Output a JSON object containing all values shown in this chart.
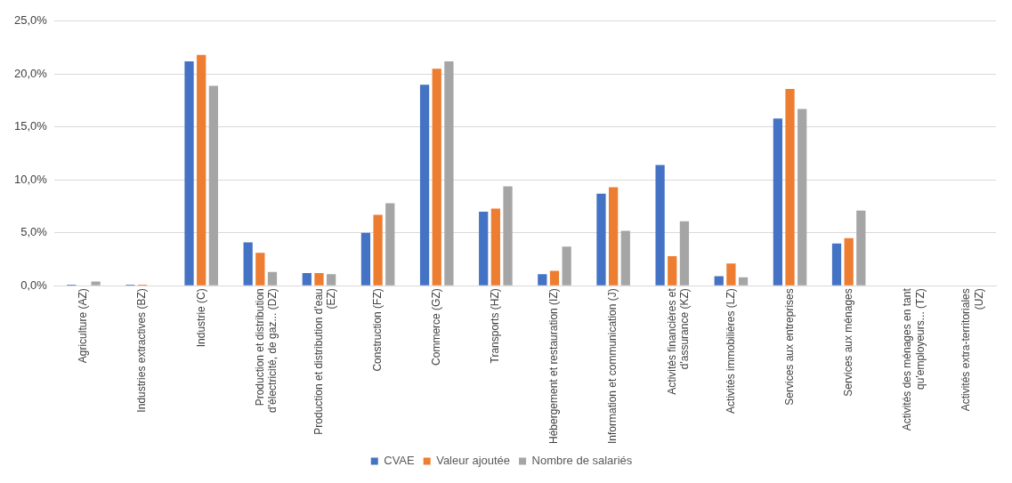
{
  "chart_data": {
    "type": "bar",
    "categories": [
      "Agriculture (AZ)",
      "Industries extractives (BZ)",
      "Industrie (C)",
      "Production et distribution d'électricité, de gaz... (DZ)",
      "Production et distribution d'eau (EZ)",
      "Construction (FZ)",
      "Commerce (GZ)",
      "Transports (HZ)",
      "Hébergement et restauration (IZ)",
      "Information et communication (J)",
      "Activités financières et d'assurance (KZ)",
      "Activités immobilières (LZ)",
      "Services aux entreprises",
      "Services aux ménages",
      "Activités des ménages en tant qu'employeurs... (TZ)",
      "Activités extra-territoriales (UZ)"
    ],
    "series": [
      {
        "name": "CVAE",
        "color": "#4472c4",
        "values": [
          0.1,
          0.1,
          21.2,
          4.1,
          1.2,
          5.0,
          19.0,
          7.0,
          1.1,
          8.7,
          11.4,
          0.9,
          15.8,
          4.0,
          0,
          0
        ]
      },
      {
        "name": "Valeur ajoutée",
        "color": "#ed7d31",
        "values": [
          0,
          0.1,
          21.8,
          3.1,
          1.2,
          6.7,
          20.5,
          7.3,
          1.4,
          9.3,
          2.8,
          2.1,
          18.6,
          4.5,
          0,
          0
        ]
      },
      {
        "name": "Nombre de salariés",
        "color": "#a5a5a5",
        "values": [
          0.4,
          0,
          18.9,
          1.3,
          1.1,
          7.8,
          21.2,
          9.4,
          3.7,
          5.2,
          6.1,
          0.8,
          16.7,
          7.1,
          0,
          0
        ]
      }
    ],
    "ylim": [
      0,
      25
    ],
    "yticks": [
      {
        "value": 0,
        "label": "0,0%"
      },
      {
        "value": 5,
        "label": "5,0%"
      },
      {
        "value": 10,
        "label": "10,0%"
      },
      {
        "value": 15,
        "label": "15,0%"
      },
      {
        "value": 20,
        "label": "20,0%"
      },
      {
        "value": 25,
        "label": "25,0%"
      }
    ],
    "grid": "y",
    "legend": "bottom"
  }
}
